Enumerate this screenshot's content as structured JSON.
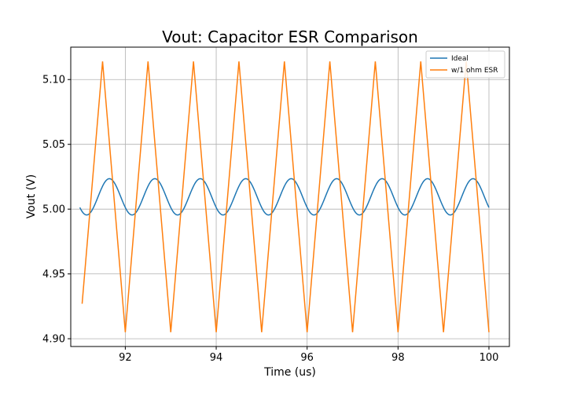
{
  "chart_data": {
    "type": "line",
    "title": "Vout: Capacitor ESR Comparison",
    "xlabel": "Time (us)",
    "ylabel": "Vout (V)",
    "xlim": [
      90.8,
      100.45
    ],
    "ylim": [
      4.894,
      5.125
    ],
    "grid": true,
    "legend_position": "top-right",
    "x_ticks": [
      92,
      94,
      96,
      98,
      100
    ],
    "x_tick_labels": [
      "92",
      "94",
      "96",
      "98",
      "100"
    ],
    "y_ticks": [
      4.9,
      4.95,
      5.0,
      5.05,
      5.1
    ],
    "y_tick_labels": [
      "4.90",
      "4.95",
      "5.00",
      "5.05",
      "5.10"
    ],
    "series": [
      {
        "name": "Ideal",
        "color": "#1f77b4",
        "x_range": [
          91.0,
          100.0
        ],
        "waveform": {
          "kind": "sinusoid",
          "mean": 5.0095,
          "amplitude": 0.014,
          "period": 1.0,
          "peak_x": 91.65
        }
      },
      {
        "name": "w/1 ohm ESR",
        "color": "#ff7f0e",
        "x": [
          91.05,
          91.5,
          92.0,
          92.5,
          93.0,
          93.5,
          94.0,
          94.5,
          95.0,
          95.5,
          96.0,
          96.5,
          97.0,
          97.5,
          98.0,
          98.5,
          99.0,
          99.5,
          100.0
        ],
        "y": [
          4.927,
          5.114,
          4.905,
          5.114,
          4.905,
          5.114,
          4.905,
          5.114,
          4.905,
          5.114,
          4.905,
          5.114,
          4.905,
          5.114,
          4.905,
          5.114,
          4.905,
          5.114,
          4.905
        ]
      }
    ]
  }
}
